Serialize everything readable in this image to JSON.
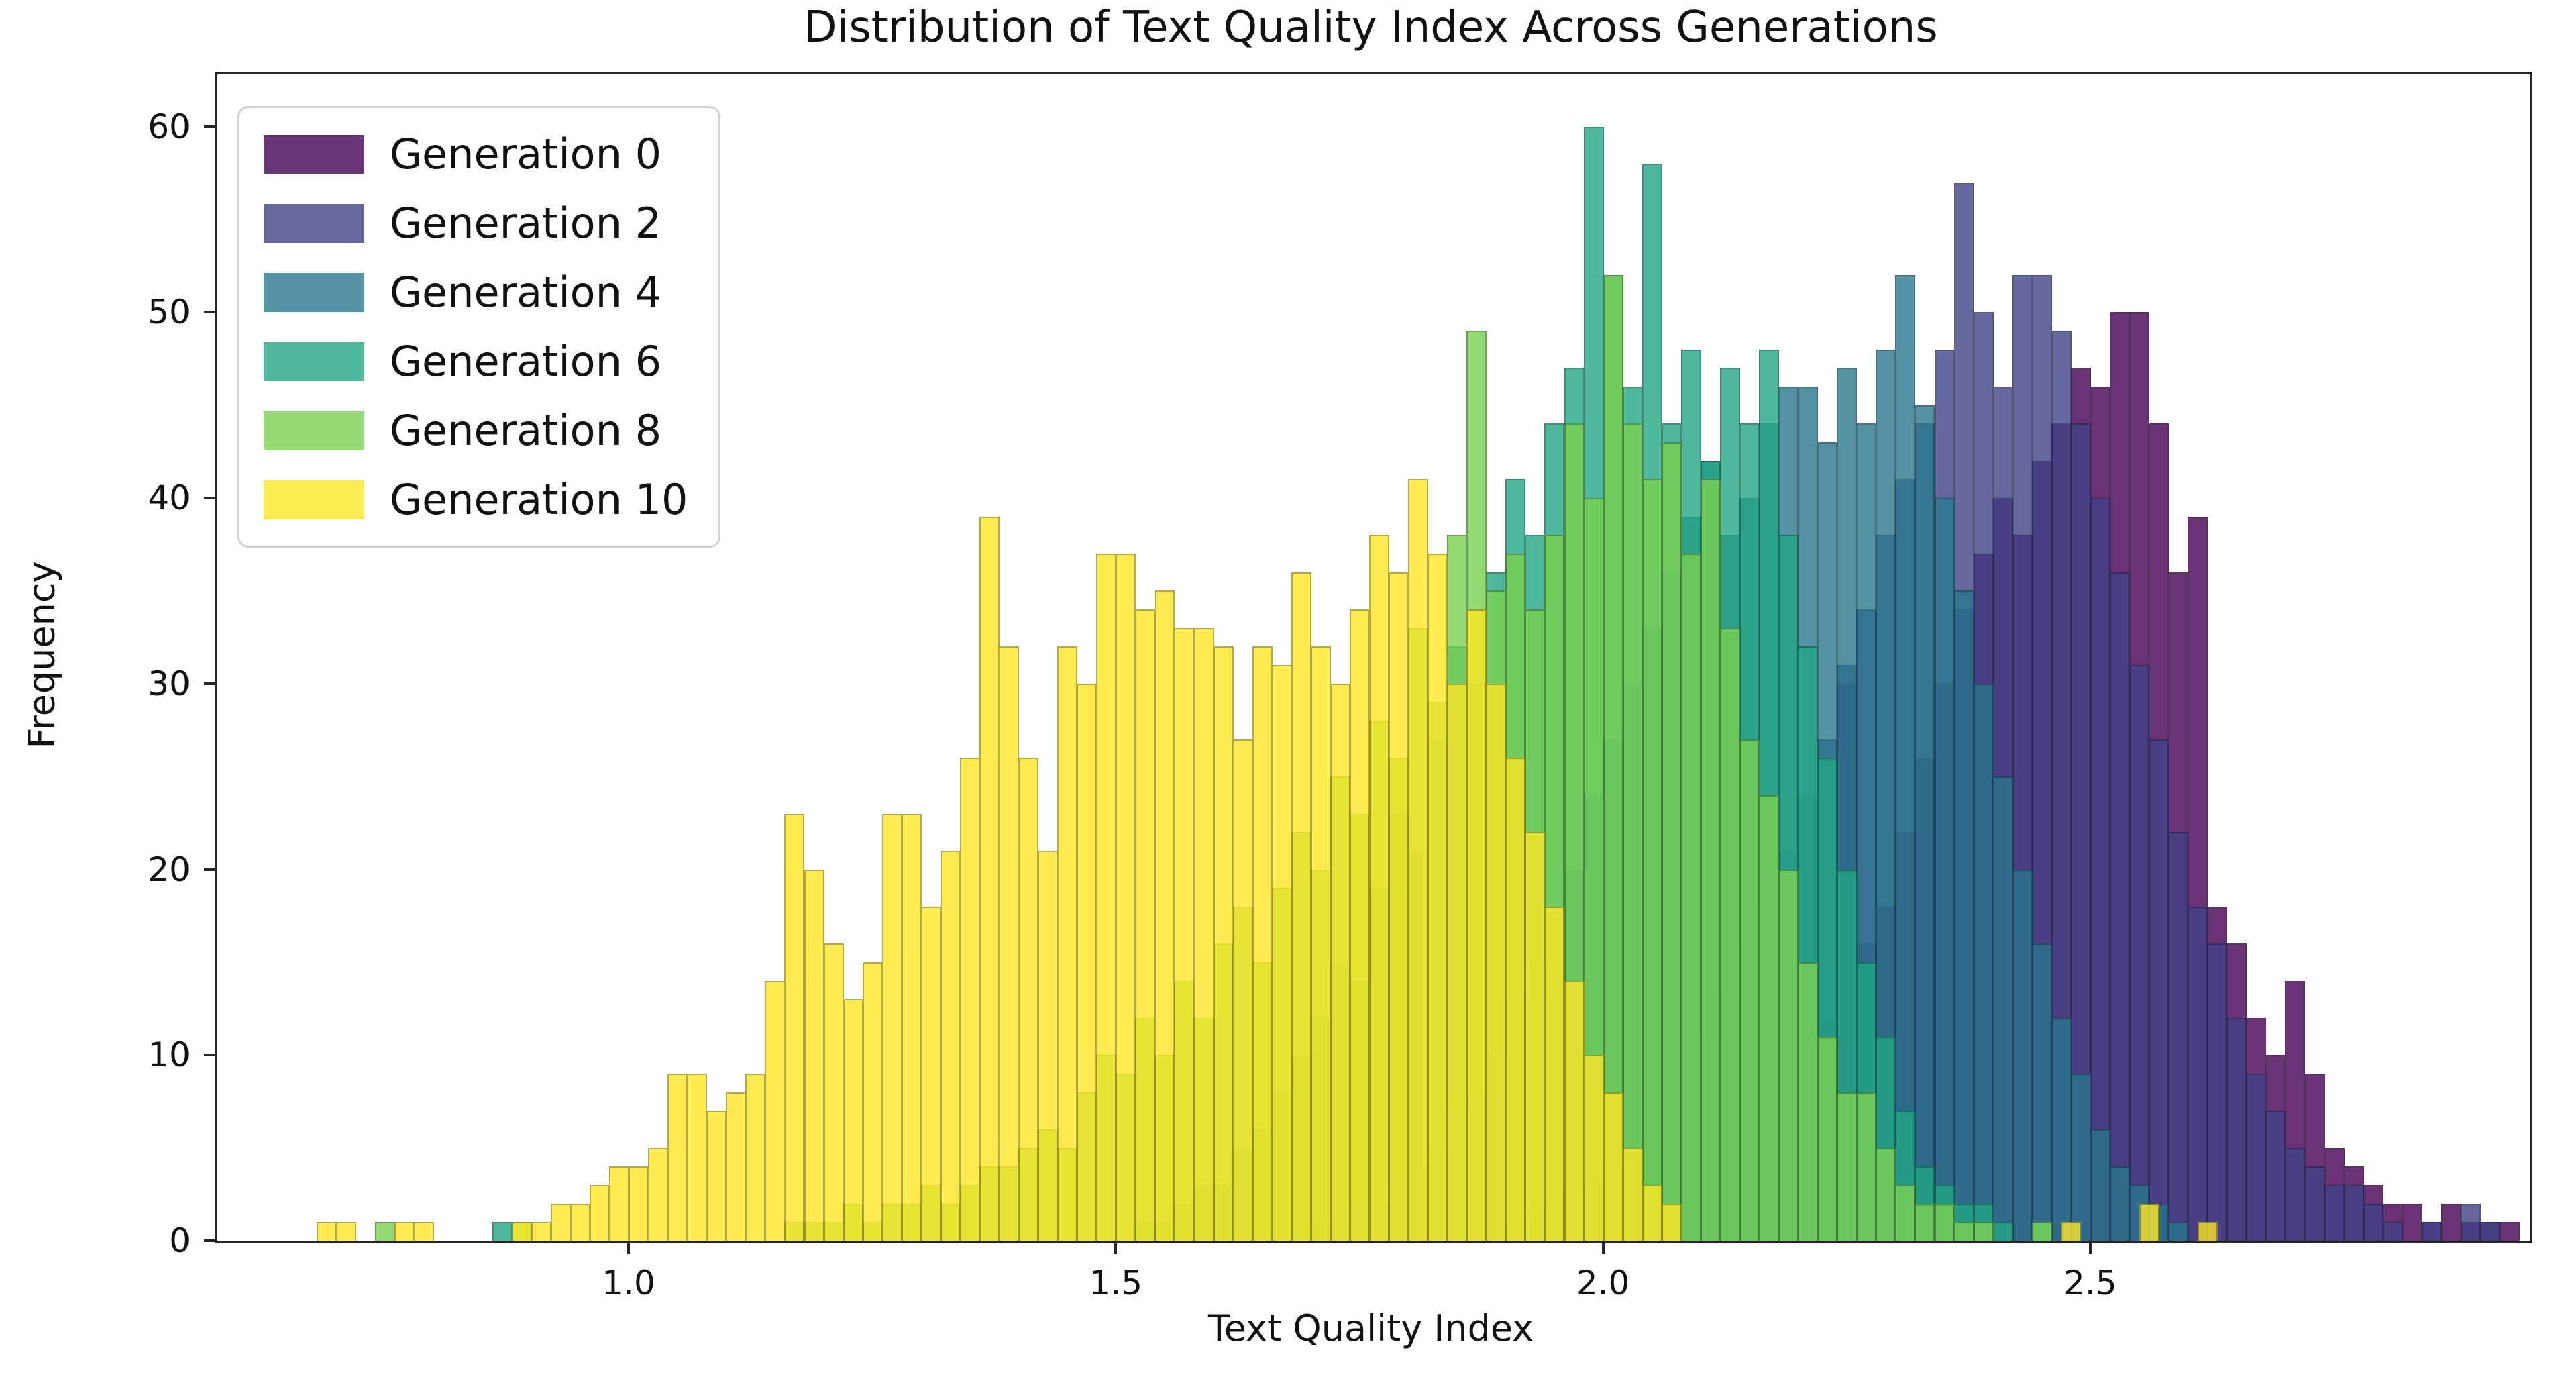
{
  "figure": {
    "title": "Distribution of Text Quality Index Across Generations",
    "x_axis": {
      "label": "Text Quality Index",
      "ticks": [
        {
          "value": 1.0,
          "label": "1.0"
        },
        {
          "value": 1.5,
          "label": "1.5"
        },
        {
          "value": 2.0,
          "label": "2.0"
        },
        {
          "value": 2.5,
          "label": "2.5"
        }
      ]
    },
    "y_axis": {
      "label": "Frequency",
      "ticks": [
        {
          "value": 0,
          "label": "0"
        },
        {
          "value": 10,
          "label": "10"
        },
        {
          "value": 20,
          "label": "20"
        },
        {
          "value": 30,
          "label": "30"
        },
        {
          "value": 40,
          "label": "40"
        },
        {
          "value": 50,
          "label": "50"
        },
        {
          "value": 60,
          "label": "60"
        }
      ]
    }
  },
  "legend": {
    "position": "upper left",
    "entries": [
      {
        "label": "Generation 0",
        "swatch": "#693476"
      },
      {
        "label": "Generation 2",
        "swatch": "#67699f"
      },
      {
        "label": "Generation 4",
        "swatch": "#5593a5"
      },
      {
        "label": "Generation 6",
        "swatch": "#4eb99d"
      },
      {
        "label": "Generation 8",
        "swatch": "#95da74"
      },
      {
        "label": "Generation 10",
        "swatch": "#fdec51"
      }
    ]
  },
  "chart_data": {
    "type": "bar",
    "subtype": "overlapping-histograms",
    "title": "Distribution of Text Quality Index Across Generations",
    "xlabel": "Text Quality Index",
    "ylabel": "Frequency",
    "xlim": [
      0.578,
      2.951
    ],
    "ylim": [
      0,
      62.8
    ],
    "grid": false,
    "bar_alpha": 0.8,
    "legend_position": "upper left",
    "series": [
      {
        "name": "Generation 0",
        "color": "#440154",
        "edge": "#2a0134",
        "bin_start": 2.06,
        "bin_width": 0.02,
        "counts": [
          1,
          2,
          2,
          3,
          4,
          5,
          7,
          9,
          12,
          30,
          16,
          18,
          22,
          26,
          30,
          34,
          37,
          40,
          38,
          42,
          44,
          47,
          46,
          50,
          50,
          44,
          36,
          39,
          18,
          16,
          12,
          10,
          14,
          9,
          5,
          4,
          3,
          2,
          2,
          1,
          2,
          1,
          1,
          1
        ],
        "outliers": []
      },
      {
        "name": "Generation 2",
        "color": "#414487",
        "edge": "#292b56",
        "bin_start": 1.88,
        "bin_width": 0.02,
        "counts": [
          1,
          1,
          2,
          2,
          3,
          3,
          4,
          5,
          6,
          8,
          9,
          11,
          13,
          16,
          18,
          21,
          24,
          27,
          31,
          34,
          38,
          41,
          44,
          48,
          57,
          50,
          46,
          52,
          52,
          49,
          44,
          40,
          36,
          31,
          27,
          22,
          18,
          16,
          12,
          9,
          7,
          5,
          4,
          3,
          3,
          2,
          1,
          0,
          1,
          0,
          2,
          1
        ],
        "outliers": []
      },
      {
        "name": "Generation 4",
        "color": "#2a788e",
        "edge": "#1b4d5b",
        "bin_start": 1.7,
        "bin_width": 0.02,
        "counts": [
          1,
          1,
          2,
          2,
          3,
          4,
          5,
          7,
          8,
          10,
          13,
          15,
          18,
          20,
          24,
          27,
          30,
          33,
          36,
          39,
          42,
          38,
          40,
          44,
          46,
          46,
          43,
          47,
          44,
          48,
          52,
          45,
          40,
          35,
          30,
          25,
          20,
          16,
          12,
          9,
          6,
          4,
          3,
          2,
          1
        ],
        "outliers": []
      },
      {
        "name": "Generation 6",
        "color": "#22a884",
        "edge": "#166b54",
        "bin_start": 1.52,
        "bin_width": 0.02,
        "counts": [
          1,
          1,
          2,
          3,
          3,
          5,
          6,
          8,
          10,
          12,
          15,
          14,
          19,
          23,
          21,
          27,
          32,
          30,
          36,
          41,
          38,
          44,
          47,
          60,
          52,
          46,
          58,
          44,
          48,
          42,
          47,
          44,
          48,
          38,
          32,
          26,
          20,
          15,
          11,
          7,
          4,
          3,
          2,
          2,
          1
        ],
        "outliers": [
          [
            0.86,
            1
          ],
          [
            2.44,
            1
          ]
        ]
      },
      {
        "name": "Generation 8",
        "color": "#7ad151",
        "edge": "#4e8634",
        "bin_start": 1.16,
        "bin_width": 0.02,
        "counts": [
          1,
          1,
          1,
          2,
          1,
          2,
          2,
          3,
          2,
          3,
          4,
          4,
          5,
          6,
          5,
          8,
          10,
          9,
          12,
          10,
          14,
          12,
          16,
          18,
          15,
          19,
          22,
          20,
          25,
          23,
          28,
          26,
          33,
          29,
          38,
          49,
          35,
          37,
          34,
          38,
          44,
          40,
          52,
          44,
          41,
          43,
          37,
          41,
          33,
          27,
          24,
          20,
          15,
          11,
          8,
          8,
          5,
          3,
          2,
          2,
          1,
          1
        ],
        "outliers": [
          [
            0.74,
            1
          ],
          [
            0.88,
            1
          ],
          [
            2.44,
            1
          ]
        ]
      },
      {
        "name": "Generation 10",
        "color": "#fde725",
        "edge": "#a29417",
        "bin_start": 0.68,
        "bin_width": 0.02,
        "counts": [
          1,
          1,
          0,
          0,
          1,
          1,
          0,
          0,
          0,
          0,
          1,
          1,
          2,
          2,
          3,
          4,
          4,
          5,
          9,
          9,
          7,
          8,
          9,
          14,
          23,
          20,
          16,
          13,
          15,
          23,
          23,
          18,
          21,
          26,
          39,
          32,
          26,
          21,
          32,
          30,
          37,
          37,
          34,
          35,
          33,
          33,
          32,
          27,
          32,
          31,
          36,
          32,
          30,
          34,
          38,
          36,
          41,
          37,
          30,
          34,
          30,
          26,
          22,
          18,
          14,
          10,
          8,
          5,
          3,
          2
        ],
        "outliers": [
          [
            2.47,
            1
          ],
          [
            2.55,
            2
          ],
          [
            2.61,
            1
          ]
        ]
      }
    ]
  }
}
